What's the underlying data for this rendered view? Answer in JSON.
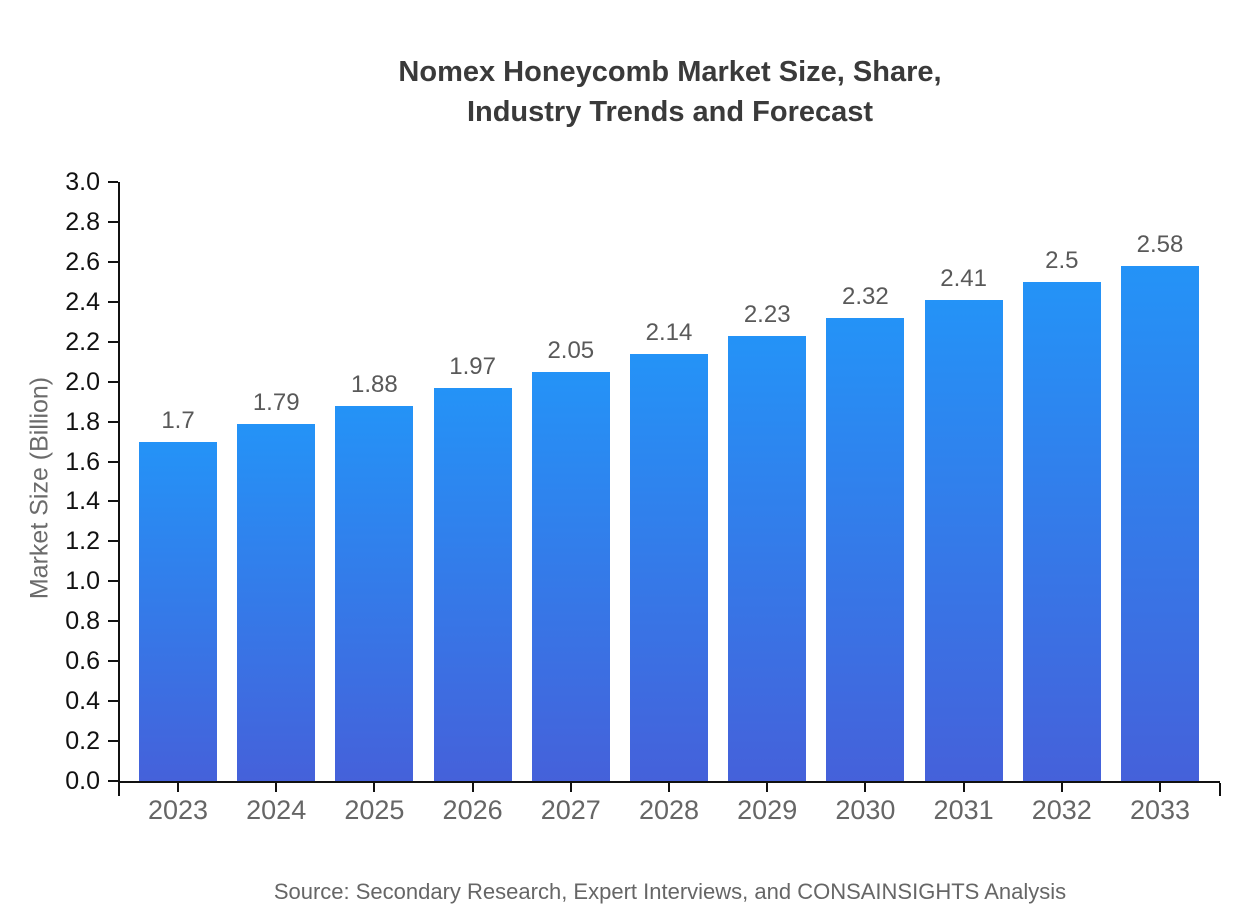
{
  "page": {
    "title_lines": [
      "Nomex Honeycomb Market Size, Share,",
      "Industry Trends and Forecast"
    ],
    "source": "Source: Secondary Research, Expert Interviews, and CONSAINSIGHTS Analysis"
  },
  "chart_data": {
    "type": "bar",
    "title": "Nomex Honeycomb Market Size, Share, Industry Trends and Forecast",
    "categories": [
      "2023",
      "2024",
      "2025",
      "2026",
      "2027",
      "2028",
      "2029",
      "2030",
      "2031",
      "2032",
      "2033"
    ],
    "values": [
      1.7,
      1.79,
      1.88,
      1.97,
      2.05,
      2.14,
      2.23,
      2.32,
      2.41,
      2.5,
      2.58
    ],
    "value_labels": [
      "1.7",
      "1.79",
      "1.88",
      "1.97",
      "2.05",
      "2.14",
      "2.23",
      "2.32",
      "2.41",
      "2.5",
      "2.58"
    ],
    "xlabel": "",
    "ylabel": "Market Size (Billion)",
    "ylim": [
      0.0,
      3.0
    ],
    "ytick_step": 0.2,
    "yticks": [
      "0.0",
      "0.2",
      "0.4",
      "0.6",
      "0.8",
      "1.0",
      "1.2",
      "1.4",
      "1.6",
      "1.8",
      "2.0",
      "2.2",
      "2.4",
      "2.6",
      "2.8",
      "3.0"
    ],
    "grid": false,
    "legend_position": "none",
    "colors": {
      "bar_gradient_top": "#2493f7",
      "bar_gradient_bottom": "#4561da",
      "axis": "#111111",
      "x_tick_label": "#666666",
      "y_tick_label": "#111111",
      "value_label": "#595959",
      "title": "#3a3a3a",
      "source_text": "#666666",
      "background": "#ffffff"
    }
  }
}
